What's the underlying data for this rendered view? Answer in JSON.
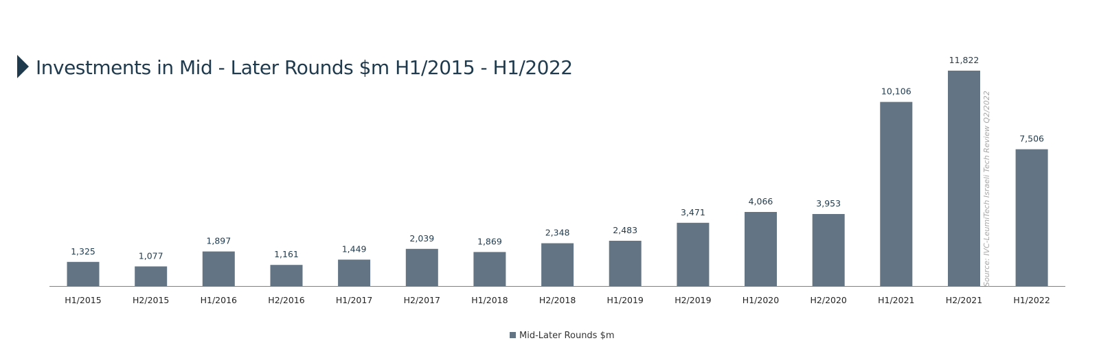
{
  "title": "Investments in Mid - Later Rounds $m H1/2015 - H1/2022",
  "source": "Source: IVC-LeumiTech Israeli Tech Review Q2/2022",
  "colors": {
    "bar": "#637585",
    "title": "#1f3a4d",
    "marker": "#1f3a4d",
    "axis": "#7f7f7f"
  },
  "chart_data": {
    "type": "bar",
    "title": "Investments in Mid - Later Rounds $m H1/2015 - H1/2022",
    "categories": [
      "H1/2015",
      "H2/2015",
      "H1/2016",
      "H2/2016",
      "H1/2017",
      "H2/2017",
      "H1/2018",
      "H2/2018",
      "H1/2019",
      "H2/2019",
      "H1/2020",
      "H2/2020",
      "H1/2021",
      "H2/2021",
      "H1/2022"
    ],
    "series": [
      {
        "name": "Mid-Later Rounds $m",
        "values": [
          1325,
          1077,
          1897,
          1161,
          1449,
          2039,
          1869,
          2348,
          2483,
          3471,
          4066,
          3953,
          10106,
          11822,
          7506
        ],
        "labels": [
          "1,325",
          "1,077",
          "1,897",
          "1,161",
          "1,449",
          "2,039",
          "1,869",
          "2,348",
          "2,483",
          "3,471",
          "4,066",
          "3,953",
          "10,106",
          "11,822",
          "7,506"
        ]
      }
    ],
    "ylim": [
      0,
      11822
    ],
    "grid": false,
    "legend": "bottom-center",
    "xlabel": "",
    "ylabel": ""
  }
}
